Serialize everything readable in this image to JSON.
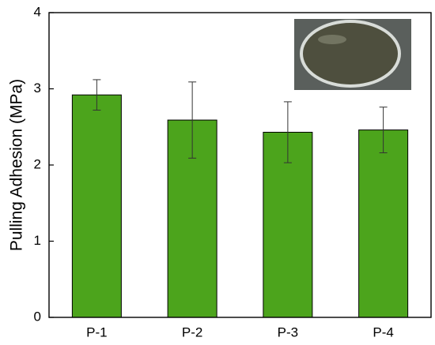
{
  "chart_data": {
    "type": "bar",
    "y_label": "Pulling Adhesion (MPa)",
    "categories": [
      "P-1",
      "P-2",
      "P-3",
      "P-4"
    ],
    "values": [
      2.92,
      2.59,
      2.43,
      2.46
    ],
    "errors": [
      0.2,
      0.5,
      0.4,
      0.3
    ],
    "color": "#4ca41c",
    "ylim": [
      0,
      4
    ],
    "yticks": [
      0,
      1,
      2,
      3,
      4
    ]
  }
}
